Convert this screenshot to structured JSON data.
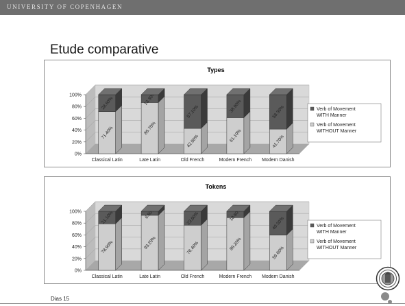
{
  "header": {
    "university": "UNIVERSITY OF COPENHAGEN"
  },
  "slide": {
    "title": "Etude comparative",
    "footer": "Dias 15"
  },
  "logo_icon": "university-seal-icon",
  "colors": {
    "with_manner": "#5a5a5a",
    "without_manner": "#cecece",
    "wall": "#d9d9d9",
    "floor": "#a8a8a8"
  },
  "chart_data": [
    {
      "type": "bar",
      "stacked": true,
      "title": "Types",
      "categories": [
        "Classical Latin",
        "Late Latin",
        "Old French",
        "Modern French",
        "Modern Danish"
      ],
      "y_ticks": [
        "0%",
        "20%",
        "40%",
        "60%",
        "80%",
        "100%"
      ],
      "ylim": [
        0,
        100
      ],
      "series": [
        {
          "name": "Verb of Movement WITH Manner",
          "values": [
            28.6,
            13.3,
            57.1,
            38.9,
            58.3
          ],
          "labels": [
            "28.60%",
            "13.30%",
            "57.10%",
            "38.90%",
            "58.30%"
          ]
        },
        {
          "name": "Verb of Movement WITHOUT Manner",
          "values": [
            71.4,
            86.7,
            42.9,
            61.1,
            41.7
          ],
          "labels": [
            "71.40%",
            "86.70%",
            "42.90%",
            "61.10%",
            "41.70%"
          ]
        }
      ],
      "legend_position": "right"
    },
    {
      "type": "bar",
      "stacked": true,
      "title": "Tokens",
      "categories": [
        "Classical Latin",
        "Late Latin",
        "Old French",
        "Modern French",
        "Modern Danish"
      ],
      "y_ticks": [
        "0%",
        "20%",
        "40%",
        "60%",
        "80%",
        "100%"
      ],
      "ylim": [
        0,
        100
      ],
      "series": [
        {
          "name": "Verb of Movement WITH Manner",
          "values": [
            21.1,
            6.8,
            23.6,
            10.8,
            40.3
          ],
          "labels": [
            "21.10%",
            "6.80%",
            "23.60%",
            "10.80%",
            "40.30%"
          ]
        },
        {
          "name": "Verb of Movement WITHOUT Manner",
          "values": [
            78.9,
            93.2,
            76.4,
            89.2,
            59.6
          ],
          "labels": [
            "78.90%",
            "93.20%",
            "76.40%",
            "89.20%",
            "59.60%"
          ]
        }
      ],
      "legend_position": "right"
    }
  ]
}
